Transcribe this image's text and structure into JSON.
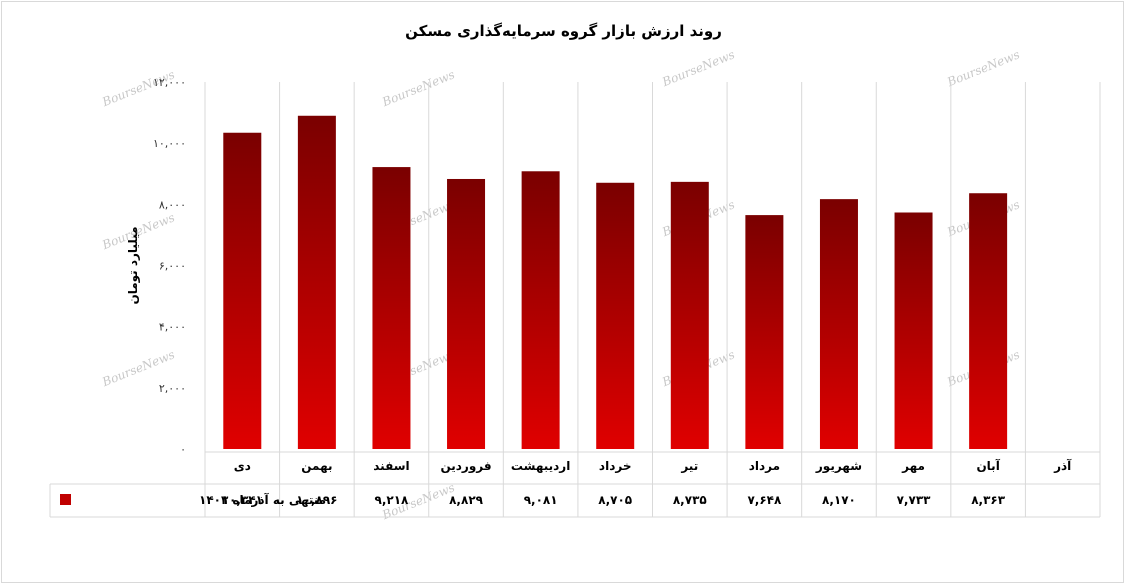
{
  "chart_data": {
    "type": "bar",
    "title": "روند ارزش بازار گروه سرمایه‌گذاری مسکن",
    "ylabel": "میلیارد تومان",
    "xlabel": "",
    "categories": [
      "دی",
      "بهمن",
      "اسفند",
      "فروردین",
      "اردیبهشت",
      "خرداد",
      "تیر",
      "مرداد",
      "شهریور",
      "مهر",
      "آبان",
      "آذر"
    ],
    "series": [
      {
        "name": "منتهی به آذرماه ۱۴۰۳",
        "values": [
          10341,
          10896,
          9218,
          8829,
          9081,
          8705,
          8735,
          7648,
          8170,
          7733,
          8363,
          null
        ],
        "labels": [
          "۱۰,۳۴۱",
          "۱۰,۸۹۶",
          "۹,۲۱۸",
          "۸,۸۲۹",
          "۹,۰۸۱",
          "۸,۷۰۵",
          "۸,۷۳۵",
          "۷,۶۴۸",
          "۸,۱۷۰",
          "۷,۷۳۳",
          "۸,۳۶۳",
          ""
        ]
      }
    ],
    "ylim": [
      0,
      12000
    ],
    "yticks": [
      0,
      2000,
      4000,
      6000,
      8000,
      10000,
      12000
    ],
    "ytick_labels": [
      "۰",
      "۲,۰۰۰",
      "۴,۰۰۰",
      "۶,۰۰۰",
      "۸,۰۰۰",
      "۱۰,۰۰۰",
      "۱۲,۰۰۰"
    ],
    "grid": "vertical category lines",
    "legend": "data table below chart",
    "colors": {
      "bar_top": "#7a0000",
      "bar_bottom": "#e00000",
      "legend_swatch": "#c00000",
      "grid": "#d9d9d9"
    }
  },
  "watermark": "BourseNews"
}
